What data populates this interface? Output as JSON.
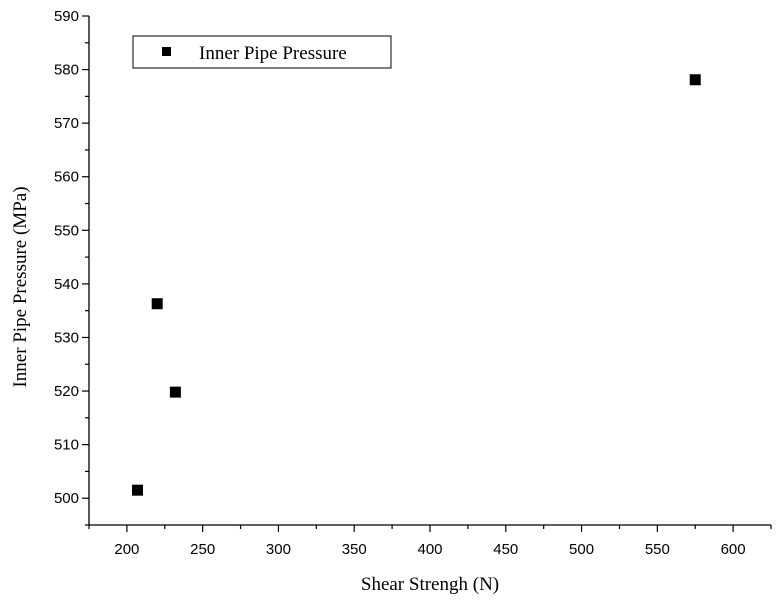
{
  "chart_data": {
    "type": "scatter",
    "title": "",
    "xlabel": "Shear Strengh (N)",
    "ylabel": "Inner Pipe Pressure (MPa)",
    "xlim": [
      175,
      625
    ],
    "ylim": [
      495,
      590
    ],
    "xticks": [
      200,
      250,
      300,
      350,
      400,
      450,
      500,
      550,
      600
    ],
    "yticks": [
      500,
      510,
      520,
      530,
      540,
      550,
      560,
      570,
      580,
      590
    ],
    "grid": false,
    "legend_position": "top-left",
    "series": [
      {
        "name": "Inner Pipe Pressure",
        "marker": "square",
        "color": "#000000",
        "points": [
          {
            "x": 207,
            "y": 501.5
          },
          {
            "x": 220,
            "y": 536.3
          },
          {
            "x": 232,
            "y": 519.8
          },
          {
            "x": 575,
            "y": 578.1
          }
        ]
      }
    ]
  }
}
